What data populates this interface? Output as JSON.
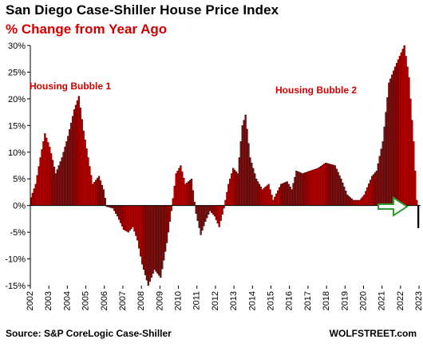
{
  "title": "San Diego Case-Shiller House Price Index",
  "subtitle": "% Change from Year Ago",
  "source": "Source: S&P CoreLogic Case-Shiller",
  "brand": "WOLFSTREET.com",
  "annotations": [
    "Housing Bubble 1",
    "Housing Bubble 2"
  ],
  "colors": {
    "bar": "#b00000",
    "bar_outline": "#000000",
    "last_bar": "#000000",
    "arrow": "#2e9d2e",
    "accent": "#d10000"
  },
  "arrow_icon": "right-arrow-outline",
  "chart_data": {
    "type": "bar",
    "title": "San Diego Case-Shiller House Price Index",
    "subtitle": "% Change from Year Ago",
    "xlabel": "",
    "ylabel": "",
    "ylim": [
      -15,
      30
    ],
    "y_ticks": [
      "30%",
      "25%",
      "20%",
      "15%",
      "10%",
      "5%",
      "0%",
      "-5%",
      "-10%",
      "-15%"
    ],
    "y_tick_values": [
      30,
      25,
      20,
      15,
      10,
      5,
      0,
      -5,
      -10,
      -15
    ],
    "x_ticks": [
      "2002",
      "2003",
      "2004",
      "2005",
      "2006",
      "2007",
      "2008",
      "2009",
      "2010",
      "2011",
      "2012",
      "2013",
      "2014",
      "2015",
      "2016",
      "2017",
      "2018",
      "2019",
      "2020",
      "2021",
      "2022",
      "2023"
    ],
    "x_start": "2002-01",
    "x_end": "2022-12",
    "frequency": "monthly",
    "anchors": [
      [
        "2002-01",
        1.5
      ],
      [
        "2002-04",
        4
      ],
      [
        "2002-07",
        9
      ],
      [
        "2002-10",
        13.5
      ],
      [
        "2003-01",
        11
      ],
      [
        "2003-05",
        6
      ],
      [
        "2003-09",
        9
      ],
      [
        "2004-01",
        13
      ],
      [
        "2004-05",
        18
      ],
      [
        "2004-08",
        20.5
      ],
      [
        "2004-11",
        14
      ],
      [
        "2005-02",
        9
      ],
      [
        "2005-05",
        4
      ],
      [
        "2005-09",
        5.5
      ],
      [
        "2005-12",
        3
      ],
      [
        "2006-02",
        -0.2
      ],
      [
        "2006-06",
        -0.5
      ],
      [
        "2006-09",
        -2
      ],
      [
        "2007-01",
        -4.5
      ],
      [
        "2007-04",
        -5
      ],
      [
        "2007-07",
        -4
      ],
      [
        "2007-10",
        -6.5
      ],
      [
        "2008-01",
        -11
      ],
      [
        "2008-05",
        -15
      ],
      [
        "2008-09",
        -12
      ],
      [
        "2009-01",
        -13.5
      ],
      [
        "2009-05",
        -7
      ],
      [
        "2009-08",
        -1
      ],
      [
        "2009-11",
        6
      ],
      [
        "2010-02",
        7.5
      ],
      [
        "2010-05",
        4
      ],
      [
        "2010-09",
        5
      ],
      [
        "2010-12",
        -1.5
      ],
      [
        "2011-03",
        -5.5
      ],
      [
        "2011-06",
        -3
      ],
      [
        "2011-09",
        -1
      ],
      [
        "2011-12",
        -2
      ],
      [
        "2012-03",
        -4
      ],
      [
        "2012-06",
        -0.5
      ],
      [
        "2012-09",
        4
      ],
      [
        "2012-12",
        7
      ],
      [
        "2013-03",
        6
      ],
      [
        "2013-06",
        15
      ],
      [
        "2013-08",
        17
      ],
      [
        "2013-11",
        9
      ],
      [
        "2014-03",
        5
      ],
      [
        "2014-07",
        3
      ],
      [
        "2014-11",
        4
      ],
      [
        "2015-02",
        1
      ],
      [
        "2015-07",
        4
      ],
      [
        "2015-11",
        4.5
      ],
      [
        "2016-02",
        3
      ],
      [
        "2016-05",
        6.5
      ],
      [
        "2016-09",
        6
      ],
      [
        "2017-02",
        6.5
      ],
      [
        "2017-07",
        7
      ],
      [
        "2017-12",
        8
      ],
      [
        "2018-06",
        7.5
      ],
      [
        "2018-10",
        5
      ],
      [
        "2019-02",
        2
      ],
      [
        "2019-06",
        1
      ],
      [
        "2019-10",
        1
      ],
      [
        "2020-01",
        2
      ],
      [
        "2020-06",
        5.5
      ],
      [
        "2020-09",
        6.5
      ],
      [
        "2021-01",
        12
      ],
      [
        "2021-05",
        23
      ],
      [
        "2021-09",
        26
      ],
      [
        "2021-12",
        28
      ],
      [
        "2022-03",
        30
      ],
      [
        "2022-06",
        24
      ],
      [
        "2022-09",
        12
      ],
      [
        "2022-11",
        1
      ],
      [
        "2022-12",
        -4.2
      ]
    ],
    "grid": false,
    "legend": "none"
  }
}
